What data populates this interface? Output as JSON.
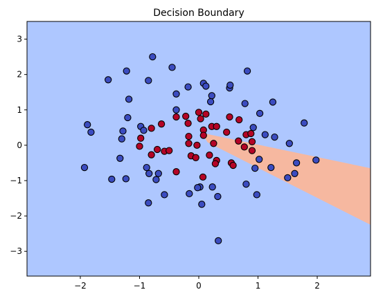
{
  "chart_data": {
    "type": "scatter",
    "title": "Decision Boundary",
    "xlabel": "",
    "ylabel": "",
    "xlim": [
      -2.9,
      2.9
    ],
    "ylim": [
      -3.7,
      3.5
    ],
    "x_ticks": [
      -2,
      -1,
      0,
      1,
      2
    ],
    "x_tick_labels": [
      "−2",
      "−1",
      "0",
      "1",
      "2"
    ],
    "y_ticks": [
      -3,
      -2,
      -1,
      0,
      1,
      2,
      3
    ],
    "y_tick_labels": [
      "−3",
      "−2",
      "−1",
      "0",
      "1",
      "2",
      "3"
    ],
    "grid": false,
    "colors": {
      "background_region": "#aec7ff",
      "boundary_region": "#f6b8a0",
      "class_0_point": "#3b4cc0",
      "class_1_point": "#b40426",
      "point_edge": "#000000"
    },
    "decision_region": {
      "class": 1,
      "polygon": [
        [
          0.05,
          0.35
        ],
        [
          2.9,
          -0.65
        ],
        [
          2.9,
          -2.25
        ],
        [
          0.15,
          0.08
        ]
      ]
    },
    "series": [
      {
        "class": 0,
        "points": [
          [
            -0.78,
            2.5
          ],
          [
            -1.22,
            2.1
          ],
          [
            -0.45,
            2.2
          ],
          [
            -1.53,
            1.85
          ],
          [
            -0.85,
            1.83
          ],
          [
            0.82,
            2.1
          ],
          [
            -0.18,
            1.65
          ],
          [
            0.08,
            1.75
          ],
          [
            0.12,
            1.67
          ],
          [
            0.52,
            1.62
          ],
          [
            0.53,
            1.7
          ],
          [
            -1.18,
            1.3
          ],
          [
            -0.38,
            1.45
          ],
          [
            0.22,
            1.4
          ],
          [
            0.2,
            1.23
          ],
          [
            0.78,
            1.18
          ],
          [
            1.25,
            1.22
          ],
          [
            -0.38,
            1.0
          ],
          [
            1.03,
            0.9
          ],
          [
            -1.2,
            0.78
          ],
          [
            1.78,
            0.63
          ],
          [
            -1.88,
            0.58
          ],
          [
            -1.82,
            0.37
          ],
          [
            -0.98,
            0.53
          ],
          [
            -0.93,
            0.42
          ],
          [
            -1.28,
            0.4
          ],
          [
            -1.3,
            0.18
          ],
          [
            0.92,
            0.5
          ],
          [
            1.12,
            0.3
          ],
          [
            1.28,
            0.23
          ],
          [
            1.53,
            0.05
          ],
          [
            -1.33,
            -0.37
          ],
          [
            1.02,
            -0.4
          ],
          [
            0.95,
            -0.65
          ],
          [
            1.22,
            -0.63
          ],
          [
            1.65,
            -0.5
          ],
          [
            1.98,
            -0.42
          ],
          [
            -1.93,
            -0.63
          ],
          [
            -0.88,
            -0.63
          ],
          [
            -0.84,
            -0.8
          ],
          [
            -0.68,
            -0.8
          ],
          [
            -1.23,
            -0.95
          ],
          [
            -1.47,
            -0.96
          ],
          [
            -0.72,
            -0.97
          ],
          [
            0.02,
            -1.18
          ],
          [
            -0.02,
            -1.2
          ],
          [
            0.23,
            -1.18
          ],
          [
            0.8,
            -1.1
          ],
          [
            0.98,
            -1.4
          ],
          [
            -0.16,
            -1.37
          ],
          [
            0.32,
            -1.45
          ],
          [
            -0.58,
            -1.4
          ],
          [
            -0.85,
            -1.63
          ],
          [
            0.05,
            -1.67
          ],
          [
            1.5,
            -0.92
          ],
          [
            1.62,
            -0.8
          ],
          [
            0.33,
            -2.7
          ]
        ]
      },
      {
        "class": 1,
        "points": [
          [
            0.0,
            0.93
          ],
          [
            0.12,
            0.88
          ],
          [
            0.03,
            0.75
          ],
          [
            -0.22,
            0.82
          ],
          [
            -0.38,
            0.8
          ],
          [
            -0.18,
            0.62
          ],
          [
            -0.63,
            0.6
          ],
          [
            -0.8,
            0.48
          ],
          [
            0.52,
            0.8
          ],
          [
            0.68,
            0.72
          ],
          [
            0.08,
            0.43
          ],
          [
            0.22,
            0.53
          ],
          [
            0.3,
            0.53
          ],
          [
            0.47,
            0.37
          ],
          [
            0.8,
            0.3
          ],
          [
            0.88,
            0.33
          ],
          [
            0.08,
            0.28
          ],
          [
            -0.17,
            0.25
          ],
          [
            -0.98,
            0.2
          ],
          [
            -1.0,
            -0.03
          ],
          [
            -0.17,
            0.05
          ],
          [
            -0.03,
            0.0
          ],
          [
            0.25,
            0.05
          ],
          [
            0.67,
            0.12
          ],
          [
            0.77,
            -0.05
          ],
          [
            0.9,
            0.1
          ],
          [
            0.9,
            -0.15
          ],
          [
            -0.7,
            -0.12
          ],
          [
            -0.58,
            -0.17
          ],
          [
            -0.5,
            -0.15
          ],
          [
            -0.8,
            -0.27
          ],
          [
            -0.13,
            -0.3
          ],
          [
            -0.05,
            -0.35
          ],
          [
            0.18,
            -0.28
          ],
          [
            0.3,
            -0.43
          ],
          [
            0.28,
            -0.52
          ],
          [
            0.55,
            -0.5
          ],
          [
            0.58,
            -0.57
          ],
          [
            -0.38,
            -0.75
          ],
          [
            0.07,
            -0.9
          ]
        ]
      }
    ]
  }
}
